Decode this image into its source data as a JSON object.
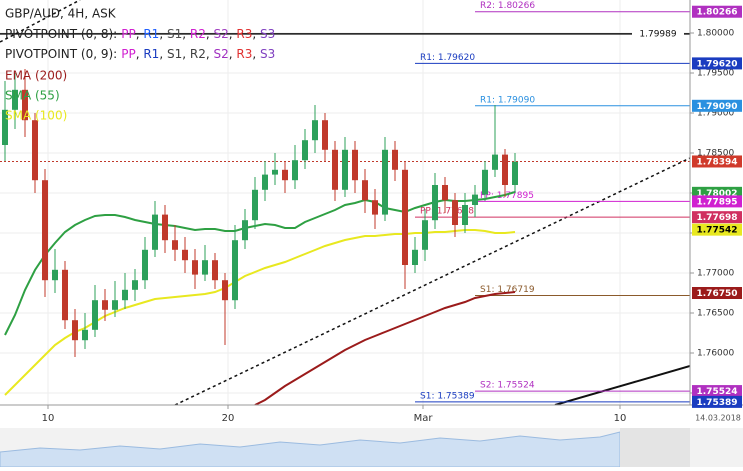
{
  "chart_data": {
    "type": "candlestick",
    "title": "GBP/AUD, 4H, ASK",
    "legend": [
      {
        "label": "PIVOTPOINT (0, 8):",
        "separator": ", ",
        "levels": [
          "PP",
          "R1",
          "S1",
          "R2",
          "S2",
          "R3",
          "S3"
        ],
        "colors": [
          "#d020d0",
          "#2060ff",
          "#505050",
          "#d020d0",
          "#a040c0",
          "#e03030",
          "#8040c0"
        ]
      },
      {
        "label": "PIVOTPOINT (0, 9):",
        "separator": ", ",
        "levels": [
          "PP",
          "R1",
          "S1",
          "R2",
          "S2",
          "R3",
          "S3"
        ],
        "colors": [
          "#d020d0",
          "#1a3cc0",
          "#404040",
          "#404040",
          "#a030c0",
          "#e03030",
          "#8040c0"
        ]
      }
    ],
    "xlim": [
      -0.5,
      68.5
    ],
    "xticks": [
      {
        "value": 4.3,
        "label": "10"
      },
      {
        "value": 22.3,
        "label": "20"
      },
      {
        "value": 41.8,
        "label": "Mar"
      },
      {
        "value": 61.5,
        "label": "10"
      }
    ],
    "date_label": "14.03.2018",
    "ylim": [
      1.7535,
      1.804125
    ],
    "yticks": [
      {
        "value": 1.8,
        "label": "1.80000"
      },
      {
        "value": 1.795,
        "label": "1.79500"
      },
      {
        "value": 1.79,
        "label": "1.79000"
      },
      {
        "value": 1.785,
        "label": "1.78500"
      },
      {
        "value": 1.78,
        "label": "1.78000"
      },
      {
        "value": 1.775,
        "label": "1.77500"
      },
      {
        "value": 1.77,
        "label": "1.77000"
      },
      {
        "value": 1.765,
        "label": "1.76500"
      },
      {
        "value": 1.76,
        "label": "1.76000"
      },
      {
        "value": 1.755,
        "label": "1.75500"
      }
    ],
    "grid": true,
    "up_color": "#2ca05a",
    "down_color": "#c0392b",
    "candles": [
      [
        1.786,
        1.794,
        1.784,
        1.7904
      ],
      [
        1.7904,
        1.795,
        1.788,
        1.7929
      ],
      [
        1.7929,
        1.7955,
        1.787,
        1.7891
      ],
      [
        1.7891,
        1.79,
        1.78,
        1.7816
      ],
      [
        1.7816,
        1.783,
        1.767,
        1.7691
      ],
      [
        1.7691,
        1.773,
        1.7675,
        1.7704
      ],
      [
        1.7704,
        1.7715,
        1.763,
        1.7641
      ],
      [
        1.7641,
        1.7655,
        1.7595,
        1.7616
      ],
      [
        1.7616,
        1.765,
        1.7605,
        1.7629
      ],
      [
        1.7629,
        1.7685,
        1.762,
        1.7666
      ],
      [
        1.7666,
        1.768,
        1.764,
        1.7654
      ],
      [
        1.7654,
        1.769,
        1.7645,
        1.7666
      ],
      [
        1.7666,
        1.77,
        1.7655,
        1.7679
      ],
      [
        1.7679,
        1.7705,
        1.7665,
        1.7691
      ],
      [
        1.7691,
        1.7745,
        1.768,
        1.7729
      ],
      [
        1.7729,
        1.779,
        1.772,
        1.7773
      ],
      [
        1.7773,
        1.7785,
        1.7725,
        1.7741
      ],
      [
        1.7741,
        1.776,
        1.7715,
        1.7729
      ],
      [
        1.7729,
        1.7745,
        1.77,
        1.7716
      ],
      [
        1.7716,
        1.773,
        1.768,
        1.7698
      ],
      [
        1.7698,
        1.7735,
        1.769,
        1.7716
      ],
      [
        1.7716,
        1.7725,
        1.768,
        1.7691
      ],
      [
        1.7691,
        1.77,
        1.761,
        1.7666
      ],
      [
        1.7666,
        1.776,
        1.7655,
        1.7741
      ],
      [
        1.7741,
        1.778,
        1.773,
        1.7766
      ],
      [
        1.7766,
        1.782,
        1.7755,
        1.7804
      ],
      [
        1.7804,
        1.784,
        1.779,
        1.7823
      ],
      [
        1.7823,
        1.785,
        1.781,
        1.7829
      ],
      [
        1.7829,
        1.784,
        1.78,
        1.7816
      ],
      [
        1.7816,
        1.786,
        1.7805,
        1.7841
      ],
      [
        1.7841,
        1.788,
        1.783,
        1.7866
      ],
      [
        1.7866,
        1.791,
        1.785,
        1.7891
      ],
      [
        1.7891,
        1.79,
        1.784,
        1.7854
      ],
      [
        1.7854,
        1.7865,
        1.779,
        1.7804
      ],
      [
        1.7804,
        1.787,
        1.7795,
        1.7854
      ],
      [
        1.7854,
        1.7865,
        1.78,
        1.7816
      ],
      [
        1.7816,
        1.783,
        1.7775,
        1.7791
      ],
      [
        1.7791,
        1.7805,
        1.7755,
        1.7773
      ],
      [
        1.7773,
        1.787,
        1.7765,
        1.7854
      ],
      [
        1.7854,
        1.7865,
        1.7815,
        1.7829
      ],
      [
        1.7829,
        1.784,
        1.768,
        1.771
      ],
      [
        1.771,
        1.7745,
        1.77,
        1.7729
      ],
      [
        1.7729,
        1.778,
        1.7715,
        1.7766
      ],
      [
        1.7766,
        1.7825,
        1.7755,
        1.781
      ],
      [
        1.781,
        1.782,
        1.7775,
        1.7791
      ],
      [
        1.7791,
        1.78,
        1.7745,
        1.776
      ],
      [
        1.776,
        1.78,
        1.775,
        1.7785
      ],
      [
        1.7785,
        1.781,
        1.777,
        1.7798
      ],
      [
        1.7798,
        1.784,
        1.779,
        1.7829
      ],
      [
        1.7829,
        1.791,
        1.782,
        1.7848
      ],
      [
        1.7848,
        1.7855,
        1.7795,
        1.781
      ],
      [
        1.781,
        1.785,
        1.78,
        1.7839
      ]
    ],
    "series": [
      {
        "name": "EMA (200)",
        "color": "#9b1b1b",
        "values": [
          null,
          null,
          null,
          null,
          null,
          null,
          null,
          null,
          null,
          null,
          null,
          null,
          null,
          null,
          null,
          null,
          null,
          null,
          null,
          null,
          null,
          null,
          null,
          null,
          null,
          1.7535,
          1.75413,
          1.755,
          1.75588,
          1.75663,
          1.75738,
          1.75813,
          1.75888,
          1.75963,
          1.76038,
          1.761,
          1.76163,
          1.76213,
          1.76263,
          1.76313,
          1.76363,
          1.76413,
          1.76463,
          1.76513,
          1.76563,
          1.766,
          1.76638,
          1.76688,
          1.76713,
          1.76738,
          1.7675,
          1.76763
        ]
      },
      {
        "name": "SMA (55)",
        "color": "#2ea043",
        "values": [
          1.76225,
          1.76475,
          1.76788,
          1.77038,
          1.77225,
          1.77375,
          1.77513,
          1.776,
          1.77663,
          1.77713,
          1.77725,
          1.77725,
          1.777,
          1.77663,
          1.77638,
          1.77613,
          1.776,
          1.77588,
          1.77563,
          1.77538,
          1.7755,
          1.7755,
          1.77525,
          1.77525,
          1.77563,
          1.77588,
          1.77613,
          1.776,
          1.77563,
          1.77563,
          1.77638,
          1.77688,
          1.77738,
          1.77788,
          1.7785,
          1.77875,
          1.77913,
          1.77888,
          1.77813,
          1.77788,
          1.77763,
          1.77813,
          1.7785,
          1.77888,
          1.77913,
          1.779,
          1.779,
          1.77913,
          1.77925,
          1.7795,
          1.77975,
          1.78013
        ]
      },
      {
        "name": "SMA (100)",
        "color": "#e8e820",
        "values": [
          1.75475,
          1.756,
          1.75725,
          1.7585,
          1.75975,
          1.761,
          1.76188,
          1.76263,
          1.76313,
          1.76388,
          1.76463,
          1.76513,
          1.76563,
          1.766,
          1.76638,
          1.76675,
          1.76688,
          1.767,
          1.76713,
          1.76725,
          1.76738,
          1.76763,
          1.76813,
          1.76888,
          1.76963,
          1.77013,
          1.77063,
          1.771,
          1.77138,
          1.77188,
          1.77238,
          1.77288,
          1.77338,
          1.77375,
          1.77413,
          1.77438,
          1.77463,
          1.77463,
          1.77475,
          1.77488,
          1.77488,
          1.775,
          1.775,
          1.77513,
          1.77513,
          1.77525,
          1.77538,
          1.77538,
          1.77525,
          1.775,
          1.775,
          1.77513
        ]
      }
    ],
    "levels": [
      {
        "label": "R2: 1.80266",
        "value": 1.80266,
        "color": "#b030c0",
        "start": 47
      },
      {
        "label": "1.79989",
        "value": 1.79989,
        "color": "#111111",
        "start": -0.5
      },
      {
        "label": "R1: 1.79620",
        "value": 1.7962,
        "color": "#1a3cc0",
        "start": 41
      },
      {
        "label": "R1: 1.79090",
        "value": 1.7909,
        "color": "#2a90e0",
        "start": 47
      },
      {
        "label": "PP: 1.77895",
        "value": 1.77895,
        "color": "#d020d0",
        "start": 47
      },
      {
        "label": "PP: 1.77698",
        "value": 1.77698,
        "color": "#d03060",
        "start": 41
      },
      {
        "label": "S1: 1.76719",
        "value": 1.76719,
        "color": "#8b5a2b",
        "start": 47
      },
      {
        "label": "S2: 1.75524",
        "value": 1.75524,
        "color": "#b030c0",
        "start": 47
      },
      {
        "label": "S1: 1.75389",
        "value": 1.75389,
        "color": "#1a3cc0",
        "start": 41
      }
    ],
    "last_price": 1.78394,
    "last_color": "#c0392b",
    "axis_markers": [
      {
        "label": "1.80266",
        "value": 1.80266,
        "color": "#b030c0"
      },
      {
        "label": "1.79620",
        "value": 1.7962,
        "color": "#1a3cc0"
      },
      {
        "label": "1.79090",
        "value": 1.7909,
        "color": "#2a90e0"
      },
      {
        "label": "1.78394",
        "value": 1.78394,
        "color": "#d03a2b"
      },
      {
        "label": "1.78002",
        "value": 1.78002,
        "color": "#2ea043"
      },
      {
        "label": "1.77895",
        "value": 1.77895,
        "color": "#d020d0"
      },
      {
        "label": "1.77698",
        "value": 1.77698,
        "color": "#d03060"
      },
      {
        "label": "1.77542",
        "value": 1.77542,
        "color": "#e8e820",
        "text_color": "#000000"
      },
      {
        "label": "1.76750",
        "value": 1.7675,
        "color": "#9b1b1b"
      },
      {
        "label": "1.75524",
        "value": 1.75524,
        "color": "#b030c0"
      },
      {
        "label": "1.75389",
        "value": 1.75389,
        "color": "#1a3cc0"
      }
    ]
  }
}
